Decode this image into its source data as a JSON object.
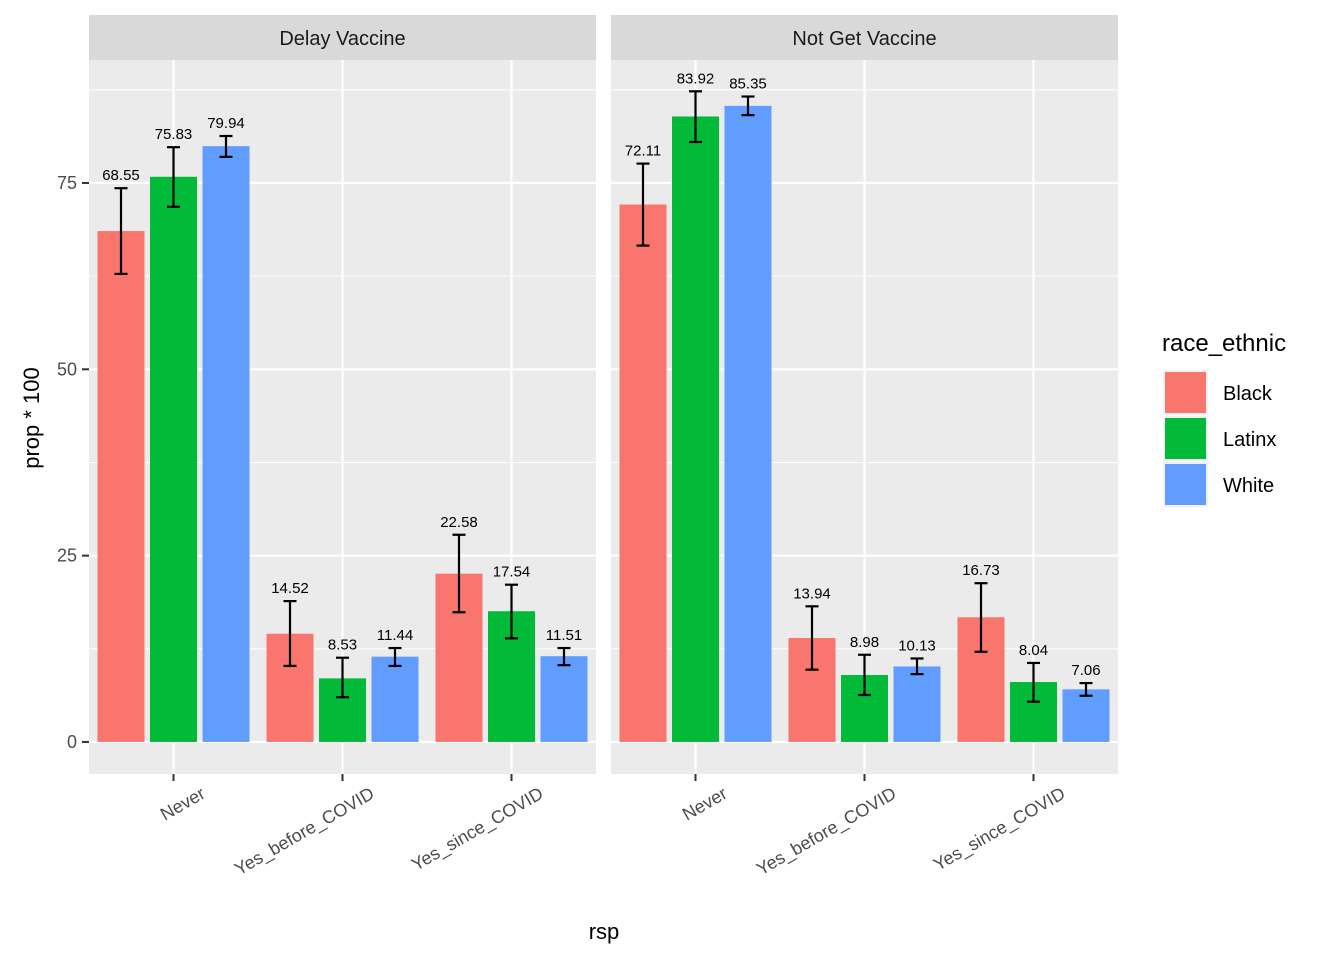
{
  "chart_data": {
    "type": "bar",
    "xlabel": "rsp",
    "ylabel": "prop * 100",
    "ylim": [
      -4.3,
      91.5
    ],
    "yticks": [
      0,
      25,
      50,
      75
    ],
    "categories": [
      "Never",
      "Yes_before_COVID",
      "Yes_since_COVID"
    ],
    "legend": {
      "title": "race_ethnic",
      "position": "right",
      "entries": [
        {
          "name": "Black",
          "color": "#F8766D"
        },
        {
          "name": "Latinx",
          "color": "#00BA38"
        },
        {
          "name": "White",
          "color": "#619CFF"
        }
      ]
    },
    "grid": true,
    "facets": [
      {
        "title": "Delay Vaccine",
        "series": [
          {
            "name": "Black",
            "values": [
              68.55,
              14.52,
              22.58
            ],
            "labels": [
              "68.55",
              "14.52",
              "22.58"
            ],
            "err_low": [
              62.8,
              10.2,
              17.4
            ],
            "err_high": [
              74.3,
              18.9,
              27.8
            ]
          },
          {
            "name": "Latinx",
            "values": [
              75.83,
              8.53,
              17.54
            ],
            "labels": [
              "75.83",
              "8.53",
              "17.54"
            ],
            "err_low": [
              71.8,
              6.0,
              13.9
            ],
            "err_high": [
              79.8,
              11.3,
              21.1
            ]
          },
          {
            "name": "White",
            "values": [
              79.94,
              11.44,
              11.51
            ],
            "labels": [
              "79.94",
              "11.44",
              "11.51"
            ],
            "err_low": [
              78.5,
              10.2,
              10.3
            ],
            "err_high": [
              81.3,
              12.6,
              12.6
            ]
          }
        ]
      },
      {
        "title": "Not Get Vaccine",
        "series": [
          {
            "name": "Black",
            "values": [
              72.11,
              13.94,
              16.73
            ],
            "labels": [
              "72.11",
              "13.94",
              "16.73"
            ],
            "err_low": [
              66.6,
              9.7,
              12.1
            ],
            "err_high": [
              77.6,
              18.2,
              21.3
            ]
          },
          {
            "name": "Latinx",
            "values": [
              83.92,
              8.98,
              8.04
            ],
            "labels": [
              "83.92",
              "8.98",
              "8.04"
            ],
            "err_low": [
              80.5,
              6.3,
              5.4
            ],
            "err_high": [
              87.3,
              11.7,
              10.6
            ]
          },
          {
            "name": "White",
            "values": [
              85.35,
              10.13,
              7.06
            ],
            "labels": [
              "85.35",
              "10.13",
              "7.06"
            ],
            "err_low": [
              84.1,
              9.1,
              6.2
            ],
            "err_high": [
              86.6,
              11.2,
              7.9
            ]
          }
        ]
      }
    ]
  }
}
